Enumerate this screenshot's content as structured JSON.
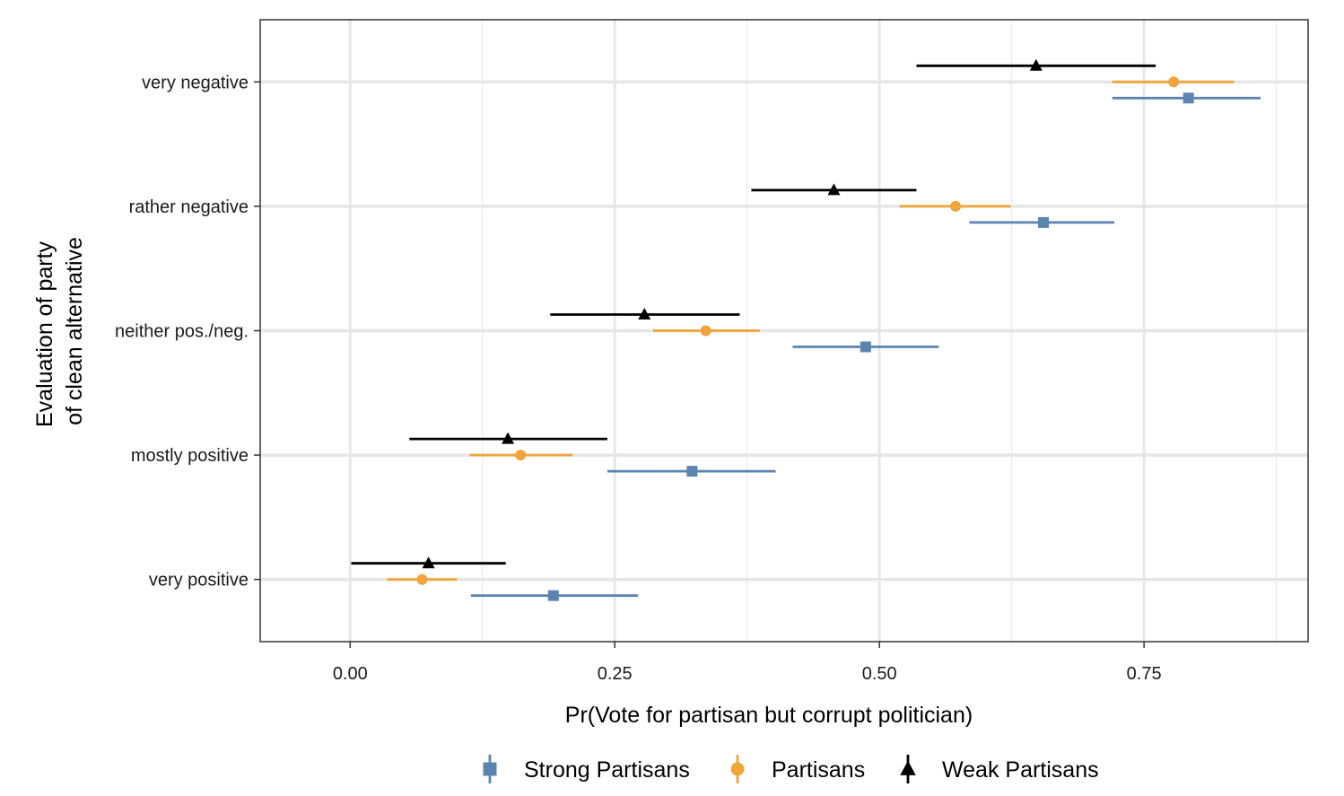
{
  "chart_data": {
    "type": "scatter",
    "subtype": "point-range (estimates with confidence intervals)",
    "orientation": "horizontal",
    "title": "",
    "xlabel": "Pr(Vote for partisan but corrupt politician)",
    "ylabel_lines": [
      "Evaluation of party",
      "of clean alternative"
    ],
    "xlim": [
      -0.085,
      0.905
    ],
    "xticks": [
      0,
      0.25,
      0.5,
      0.75
    ],
    "xtick_labels": [
      "0.00",
      "0.25",
      "0.50",
      "0.75"
    ],
    "categories": [
      "very negative",
      "rather negative",
      "neither pos./neg.",
      "mostly positive",
      "very positive"
    ],
    "grid": true,
    "legend_position": "bottom",
    "series": [
      {
        "name": "Strong Partisans",
        "color": "#5b84b1",
        "marker": "square",
        "points": [
          {
            "category": "very negative",
            "estimate": 0.792,
            "lower": 0.72,
            "upper": 0.86
          },
          {
            "category": "rather negative",
            "estimate": 0.655,
            "lower": 0.585,
            "upper": 0.722
          },
          {
            "category": "neither pos./neg.",
            "estimate": 0.487,
            "lower": 0.418,
            "upper": 0.556
          },
          {
            "category": "mostly positive",
            "estimate": 0.323,
            "lower": 0.243,
            "upper": 0.402
          },
          {
            "category": "very positive",
            "estimate": 0.192,
            "lower": 0.114,
            "upper": 0.272
          }
        ]
      },
      {
        "name": "Partisans",
        "color": "#f0a53a",
        "marker": "circle",
        "points": [
          {
            "category": "very negative",
            "estimate": 0.778,
            "lower": 0.72,
            "upper": 0.835
          },
          {
            "category": "rather negative",
            "estimate": 0.572,
            "lower": 0.519,
            "upper": 0.624
          },
          {
            "category": "neither pos./neg.",
            "estimate": 0.336,
            "lower": 0.286,
            "upper": 0.387
          },
          {
            "category": "mostly positive",
            "estimate": 0.161,
            "lower": 0.113,
            "upper": 0.21
          },
          {
            "category": "very positive",
            "estimate": 0.068,
            "lower": 0.035,
            "upper": 0.101
          }
        ]
      },
      {
        "name": "Weak Partisans",
        "color": "#000000",
        "marker": "triangle",
        "points": [
          {
            "category": "very negative",
            "estimate": 0.648,
            "lower": 0.535,
            "upper": 0.761
          },
          {
            "category": "rather negative",
            "estimate": 0.457,
            "lower": 0.379,
            "upper": 0.535
          },
          {
            "category": "neither pos./neg.",
            "estimate": 0.278,
            "lower": 0.189,
            "upper": 0.368
          },
          {
            "category": "mostly positive",
            "estimate": 0.149,
            "lower": 0.056,
            "upper": 0.243
          },
          {
            "category": "very positive",
            "estimate": 0.074,
            "lower": 0.001,
            "upper": 0.147
          }
        ]
      }
    ]
  }
}
